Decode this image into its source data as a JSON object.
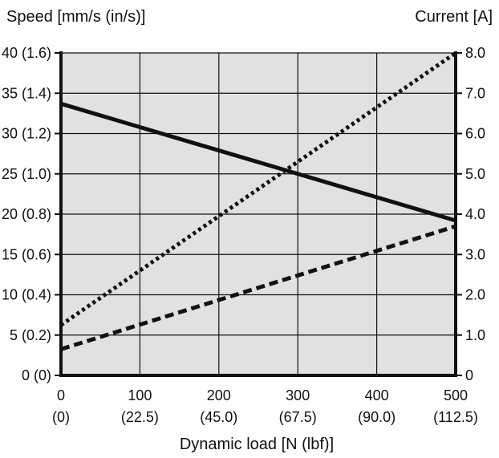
{
  "chart_data": {
    "type": "line",
    "title": "",
    "xlabel": "Dynamic load [N (lbf)]",
    "ylabel_left": "Speed [mm/s (in/s)]",
    "ylabel_right": "Current [A]",
    "xlim": [
      0,
      500
    ],
    "ylim_left": [
      0,
      40
    ],
    "ylim_right": [
      0,
      8
    ],
    "grid": true,
    "x_ticks": [
      {
        "value": 0,
        "label": "0",
        "sub": "(0)"
      },
      {
        "value": 100,
        "label": "100",
        "sub": "(22.5)"
      },
      {
        "value": 200,
        "label": "200",
        "sub": "(45.0)"
      },
      {
        "value": 300,
        "label": "300",
        "sub": "(67.5)"
      },
      {
        "value": 400,
        "label": "400",
        "sub": "(90.0)"
      },
      {
        "value": 500,
        "label": "500",
        "sub": "(112.5)"
      }
    ],
    "y_ticks_left": [
      {
        "value": 0,
        "label": "0 (0)"
      },
      {
        "value": 5,
        "label": "5 (0.2)"
      },
      {
        "value": 10,
        "label": "10 (0.4)"
      },
      {
        "value": 15,
        "label": "15 (0.6)"
      },
      {
        "value": 20,
        "label": "20 (0.8)"
      },
      {
        "value": 25,
        "label": "25 (1.0)"
      },
      {
        "value": 30,
        "label": "30 (1.2)"
      },
      {
        "value": 35,
        "label": "35 (1.4)"
      },
      {
        "value": 40,
        "label": "40 (1.6)"
      }
    ],
    "y_ticks_right": [
      {
        "value": 0,
        "label": "0"
      },
      {
        "value": 1,
        "label": "1.0"
      },
      {
        "value": 2,
        "label": "2.0"
      },
      {
        "value": 3,
        "label": "3.0"
      },
      {
        "value": 4,
        "label": "4.0"
      },
      {
        "value": 5,
        "label": "5.0"
      },
      {
        "value": 6,
        "label": "6.0"
      },
      {
        "value": 7,
        "label": "7.0"
      },
      {
        "value": 8,
        "label": "8.0"
      }
    ],
    "series": [
      {
        "axis": "left",
        "style": "solid",
        "x": [
          0,
          500
        ],
        "y": [
          33.7,
          19.2
        ]
      },
      {
        "axis": "right",
        "style": "dotted",
        "x": [
          0,
          500
        ],
        "y": [
          1.25,
          8.0
        ]
      },
      {
        "axis": "right",
        "style": "dashed",
        "x": [
          0,
          500
        ],
        "y": [
          0.65,
          3.7
        ]
      }
    ],
    "colors": {
      "plot_bg": "#e1e1e1",
      "line": "#111111",
      "grid": "#111111"
    }
  }
}
